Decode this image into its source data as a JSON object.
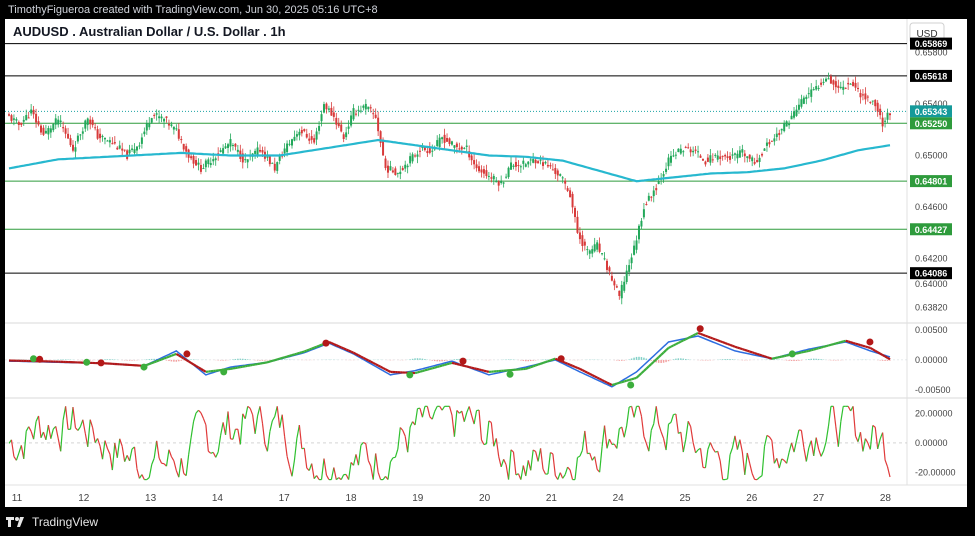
{
  "header": {
    "attribution": "TimothyFigueroa created with TradingView.com, Jun 30, 2025 05:16 UTC+8"
  },
  "footer": {
    "brand": "TradingView",
    "logo_icon": "tradingview-logo-icon"
  },
  "symbol_title": "AUDUSD . Australian Dollar / U.S. Dollar . 1h",
  "currency_button": "USD",
  "colors": {
    "up": "#22a85a",
    "down": "#d83a3a",
    "ma": "#27b8cf",
    "hline_green": "#2e9b3c",
    "hline_black": "#000000",
    "hline_dotted": "#1aa3a3",
    "macd_fast": "#2d6de0",
    "macd_slow_up": "#3cae3c",
    "macd_slow_down": "#b31818",
    "osc_up": "#2fc02f",
    "osc_down": "#e03a3a",
    "grid_text": "#444444"
  },
  "chart_data": [
    {
      "type": "candlestick",
      "title": "AUDUSD . Australian Dollar / U.S. Dollar . 1h",
      "x_tick_labels": [
        "11",
        "12",
        "13",
        "14",
        "17",
        "18",
        "19",
        "20",
        "21",
        "24",
        "25",
        "26",
        "27",
        "28"
      ],
      "y_tick_labels": [
        "0.65800",
        "0.65400",
        "0.65000",
        "0.64600",
        "0.64200",
        "0.64000",
        "0.63820"
      ],
      "y_tick_values": [
        0.658,
        0.654,
        0.65,
        0.646,
        0.642,
        0.64,
        0.6382
      ],
      "ylim": [
        0.6373,
        0.6606
      ],
      "horizontal_lines": [
        {
          "value": 0.65869,
          "label": "0.65869",
          "style": "black"
        },
        {
          "value": 0.65618,
          "label": "0.65618",
          "style": "black"
        },
        {
          "value": 0.65343,
          "label": "0.65343",
          "style": "dotted"
        },
        {
          "value": 0.6525,
          "label": "0.65250",
          "style": "green"
        },
        {
          "value": 0.64801,
          "label": "0.64801",
          "style": "green"
        },
        {
          "value": 0.64427,
          "label": "0.64427",
          "style": "green"
        },
        {
          "value": 0.64086,
          "label": "0.64086",
          "style": "black"
        }
      ],
      "close_anchors": [
        [
          0,
          0.653
        ],
        [
          4,
          0.6524
        ],
        [
          9,
          0.6534
        ],
        [
          14,
          0.6516
        ],
        [
          20,
          0.6528
        ],
        [
          26,
          0.6505
        ],
        [
          32,
          0.653
        ],
        [
          36,
          0.6515
        ],
        [
          42,
          0.651
        ],
        [
          48,
          0.65
        ],
        [
          53,
          0.651
        ],
        [
          58,
          0.6532
        ],
        [
          63,
          0.6528
        ],
        [
          68,
          0.6519
        ],
        [
          73,
          0.65
        ],
        [
          78,
          0.649
        ],
        [
          84,
          0.65
        ],
        [
          90,
          0.651
        ],
        [
          96,
          0.6495
        ],
        [
          102,
          0.6505
        ],
        [
          108,
          0.649
        ],
        [
          112,
          0.6505
        ],
        [
          118,
          0.652
        ],
        [
          124,
          0.651
        ],
        [
          128,
          0.654
        ],
        [
          132,
          0.653
        ],
        [
          136,
          0.6514
        ],
        [
          140,
          0.6534
        ],
        [
          145,
          0.6538
        ],
        [
          149,
          0.653
        ],
        [
          153,
          0.649
        ],
        [
          158,
          0.6487
        ],
        [
          162,
          0.6495
        ],
        [
          167,
          0.6505
        ],
        [
          172,
          0.6504
        ],
        [
          176,
          0.6514
        ],
        [
          181,
          0.6507
        ],
        [
          186,
          0.6505
        ],
        [
          190,
          0.649
        ],
        [
          195,
          0.6484
        ],
        [
          200,
          0.6478
        ],
        [
          204,
          0.6493
        ],
        [
          209,
          0.6493
        ],
        [
          214,
          0.6497
        ],
        [
          219,
          0.6492
        ],
        [
          224,
          0.6484
        ],
        [
          228,
          0.647
        ],
        [
          231,
          0.644
        ],
        [
          235,
          0.6425
        ],
        [
          239,
          0.643
        ],
        [
          243,
          0.6413
        ],
        [
          248,
          0.639
        ],
        [
          251,
          0.641
        ],
        [
          254,
          0.6428
        ],
        [
          258,
          0.646
        ],
        [
          263,
          0.6476
        ],
        [
          268,
          0.6496
        ],
        [
          273,
          0.6505
        ],
        [
          278,
          0.6504
        ],
        [
          283,
          0.6496
        ],
        [
          288,
          0.65
        ],
        [
          293,
          0.6498
        ],
        [
          298,
          0.6502
        ],
        [
          303,
          0.6494
        ],
        [
          308,
          0.6508
        ],
        [
          313,
          0.6518
        ],
        [
          318,
          0.653
        ],
        [
          323,
          0.6545
        ],
        [
          328,
          0.6552
        ],
        [
          332,
          0.6562
        ],
        [
          337,
          0.6552
        ],
        [
          342,
          0.6557
        ],
        [
          347,
          0.6546
        ],
        [
          352,
          0.654
        ],
        [
          355,
          0.6525
        ],
        [
          358,
          0.6534
        ]
      ],
      "ma_anchors": [
        [
          0,
          0.649
        ],
        [
          20,
          0.6497
        ],
        [
          50,
          0.65
        ],
        [
          70,
          0.6502
        ],
        [
          90,
          0.65
        ],
        [
          110,
          0.65
        ],
        [
          130,
          0.6506
        ],
        [
          150,
          0.6512
        ],
        [
          165,
          0.6508
        ],
        [
          180,
          0.6504
        ],
        [
          195,
          0.65
        ],
        [
          210,
          0.6499
        ],
        [
          225,
          0.6496
        ],
        [
          240,
          0.6488
        ],
        [
          255,
          0.648
        ],
        [
          270,
          0.6483
        ],
        [
          285,
          0.6486
        ],
        [
          300,
          0.6487
        ],
        [
          315,
          0.649
        ],
        [
          330,
          0.6496
        ],
        [
          345,
          0.6504
        ],
        [
          358,
          0.6508
        ]
      ]
    },
    {
      "type": "line",
      "y_tick_labels": [
        "0.00500",
        "0.00000",
        "-0.00500"
      ],
      "y_tick_values": [
        0.005,
        0,
        -0.005
      ],
      "ylim": [
        -0.0062,
        0.006
      ],
      "fast_anchors": [
        [
          0,
          -0.0002
        ],
        [
          20,
          -0.0004
        ],
        [
          40,
          -0.0006
        ],
        [
          55,
          -0.001
        ],
        [
          68,
          0.0015
        ],
        [
          80,
          -0.0025
        ],
        [
          90,
          -0.0012
        ],
        [
          105,
          -0.0004
        ],
        [
          120,
          0.0012
        ],
        [
          130,
          0.0028
        ],
        [
          140,
          0.001
        ],
        [
          155,
          -0.0025
        ],
        [
          165,
          -0.0018
        ],
        [
          180,
          -0.0002
        ],
        [
          195,
          -0.0025
        ],
        [
          210,
          -0.0012
        ],
        [
          222,
          0.0
        ],
        [
          232,
          -0.002
        ],
        [
          245,
          -0.0045
        ],
        [
          255,
          -0.002
        ],
        [
          268,
          0.003
        ],
        [
          280,
          0.004
        ],
        [
          295,
          0.0015
        ],
        [
          310,
          0.0002
        ],
        [
          325,
          0.0018
        ],
        [
          340,
          0.003
        ],
        [
          350,
          0.0015
        ],
        [
          358,
          0.0005
        ]
      ],
      "slow_anchors": [
        [
          0,
          -0.0001
        ],
        [
          20,
          -0.0003
        ],
        [
          40,
          -0.0006
        ],
        [
          55,
          -0.001
        ],
        [
          68,
          0.001
        ],
        [
          80,
          -0.002
        ],
        [
          90,
          -0.0015
        ],
        [
          105,
          -0.0004
        ],
        [
          120,
          0.0014
        ],
        [
          130,
          0.003
        ],
        [
          140,
          0.0012
        ],
        [
          155,
          -0.002
        ],
        [
          165,
          -0.0022
        ],
        [
          180,
          -0.0005
        ],
        [
          195,
          -0.002
        ],
        [
          210,
          -0.0015
        ],
        [
          222,
          0.0002
        ],
        [
          232,
          -0.0015
        ],
        [
          245,
          -0.0042
        ],
        [
          255,
          -0.003
        ],
        [
          268,
          0.002
        ],
        [
          280,
          0.0045
        ],
        [
          295,
          0.0022
        ],
        [
          310,
          0.0002
        ],
        [
          325,
          0.0015
        ],
        [
          340,
          0.0032
        ],
        [
          350,
          0.002
        ],
        [
          358,
          0.0001
        ]
      ],
      "cross_markers": [
        {
          "x": 12,
          "v": 0.0002,
          "dir": "up"
        },
        {
          "x": 15,
          "v": 0.0001,
          "dir": "down"
        },
        {
          "x": 38,
          "v": -0.0004,
          "dir": "up"
        },
        {
          "x": 45,
          "v": -0.0005,
          "dir": "down"
        },
        {
          "x": 66,
          "v": -0.0012,
          "dir": "up"
        },
        {
          "x": 87,
          "v": 0.001,
          "dir": "down"
        },
        {
          "x": 105,
          "v": -0.002,
          "dir": "up"
        },
        {
          "x": 155,
          "v": 0.0028,
          "dir": "down"
        },
        {
          "x": 196,
          "v": -0.0025,
          "dir": "up"
        },
        {
          "x": 222,
          "v": -0.0002,
          "dir": "down"
        },
        {
          "x": 245,
          "v": -0.0024,
          "dir": "up"
        },
        {
          "x": 270,
          "v": 0.0002,
          "dir": "down"
        },
        {
          "x": 304,
          "v": -0.0042,
          "dir": "up"
        },
        {
          "x": 338,
          "v": 0.0052,
          "dir": "down"
        },
        {
          "x": 383,
          "v": 0.001,
          "dir": "up"
        },
        {
          "x": 421,
          "v": 0.003,
          "dir": "down"
        }
      ],
      "histogram": {
        "amplitude": 0.001
      }
    },
    {
      "type": "line",
      "y_tick_labels": [
        "20.00000",
        "0.00000",
        "-20.00000"
      ],
      "y_tick_values": [
        20,
        0,
        -20
      ],
      "ylim": [
        -28,
        30
      ],
      "series_seed": 7,
      "value_range": [
        -25,
        25
      ]
    }
  ]
}
